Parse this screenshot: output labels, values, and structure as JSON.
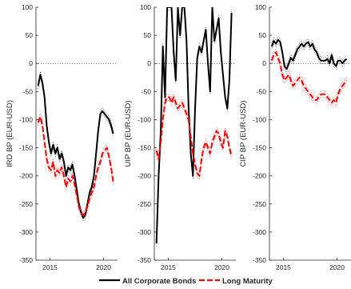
{
  "chart_data": [
    {
      "type": "line",
      "ylabel": "IRD BP (EUR-USD)",
      "ylim": [
        -350,
        100
      ],
      "yticks": [
        100,
        50,
        0,
        -50,
        -100,
        -150,
        -200,
        -250,
        -300,
        -350
      ],
      "xlim": [
        2013.7,
        2021.3
      ],
      "xticks": [
        2015,
        2020
      ],
      "zero_line": true,
      "series": [
        {
          "name": "All Corporate Bonds",
          "color": "#000000",
          "style": "solid",
          "x": [
            2013.9,
            2014.1,
            2014.3,
            2014.5,
            2014.7,
            2014.9,
            2015.1,
            2015.3,
            2015.5,
            2015.7,
            2015.9,
            2016.1,
            2016.3,
            2016.5,
            2016.7,
            2016.9,
            2017.1,
            2017.3,
            2017.5,
            2017.7,
            2017.9,
            2018.1,
            2018.3,
            2018.5,
            2018.7,
            2018.9,
            2019.1,
            2019.3,
            2019.5,
            2019.7,
            2019.9,
            2020.1,
            2020.3,
            2020.5,
            2020.7,
            2020.9
          ],
          "values": [
            -40,
            -20,
            -35,
            -60,
            -110,
            -140,
            -160,
            -145,
            -160,
            -150,
            -170,
            -160,
            -175,
            -200,
            -185,
            -190,
            -180,
            -200,
            -225,
            -250,
            -265,
            -275,
            -270,
            -250,
            -230,
            -220,
            -200,
            -160,
            -120,
            -90,
            -85,
            -90,
            -95,
            -100,
            -110,
            -125
          ]
        },
        {
          "name": "Long Maturity",
          "color": "#ff0000",
          "style": "dashed",
          "x": [
            2013.9,
            2014.1,
            2014.3,
            2014.5,
            2014.7,
            2014.9,
            2015.1,
            2015.3,
            2015.5,
            2015.7,
            2015.9,
            2016.1,
            2016.3,
            2016.5,
            2016.7,
            2016.9,
            2017.1,
            2017.3,
            2017.5,
            2017.7,
            2017.9,
            2018.1,
            2018.3,
            2018.5,
            2018.7,
            2018.9,
            2019.1,
            2019.3,
            2019.5,
            2019.7,
            2019.9,
            2020.1,
            2020.3,
            2020.5,
            2020.7,
            2020.9
          ],
          "values": [
            -105,
            -95,
            -110,
            -140,
            -170,
            -185,
            -190,
            -175,
            -200,
            -190,
            -195,
            -185,
            -200,
            -220,
            -205,
            -210,
            -200,
            -215,
            -235,
            -255,
            -265,
            -270,
            -265,
            -255,
            -240,
            -230,
            -220,
            -200,
            -185,
            -175,
            -160,
            -155,
            -150,
            -165,
            -185,
            -210
          ]
        }
      ]
    },
    {
      "type": "line",
      "ylabel": "UIP BP (EUR-USD)",
      "ylim": [
        -350,
        100
      ],
      "yticks": [
        100,
        50,
        0,
        -50,
        -100,
        -150,
        -200,
        -250,
        -300,
        -350
      ],
      "xlim": [
        2013.7,
        2021.3
      ],
      "xticks": [
        2015,
        2020
      ],
      "zero_line": true,
      "series": [
        {
          "name": "All Corporate Bonds",
          "color": "#000000",
          "style": "solid",
          "x": [
            2013.9,
            2014.1,
            2014.3,
            2014.5,
            2014.7,
            2014.9,
            2015.1,
            2015.3,
            2015.5,
            2015.7,
            2015.9,
            2016.1,
            2016.3,
            2016.5,
            2016.7,
            2016.9,
            2017.1,
            2017.3,
            2017.5,
            2017.7,
            2017.9,
            2018.1,
            2018.3,
            2018.5,
            2018.7,
            2018.9,
            2019.1,
            2019.3,
            2019.5,
            2019.7,
            2019.9,
            2020.1,
            2020.3,
            2020.5,
            2020.7,
            2020.9
          ],
          "values": [
            -320,
            -200,
            -120,
            30,
            -60,
            100,
            100,
            100,
            20,
            -30,
            100,
            50,
            100,
            100,
            40,
            -80,
            -160,
            -200,
            -80,
            10,
            30,
            20,
            40,
            60,
            0,
            -50,
            100,
            40,
            60,
            80,
            20,
            -20,
            -60,
            -80,
            -30,
            90
          ]
        },
        {
          "name": "Long Maturity",
          "color": "#ff0000",
          "style": "dashed",
          "x": [
            2013.9,
            2014.1,
            2014.3,
            2014.5,
            2014.7,
            2014.9,
            2015.1,
            2015.3,
            2015.5,
            2015.7,
            2015.9,
            2016.1,
            2016.3,
            2016.5,
            2016.7,
            2016.9,
            2017.1,
            2017.3,
            2017.5,
            2017.7,
            2017.9,
            2018.1,
            2018.3,
            2018.5,
            2018.7,
            2018.9,
            2019.1,
            2019.3,
            2019.5,
            2019.7,
            2019.9,
            2020.1,
            2020.3,
            2020.5,
            2020.7,
            2020.9
          ],
          "values": [
            -155,
            -170,
            -140,
            -100,
            -70,
            -60,
            -60,
            -70,
            -60,
            -70,
            -80,
            -75,
            -70,
            -80,
            -90,
            -100,
            -130,
            -160,
            -180,
            -195,
            -200,
            -170,
            -150,
            -140,
            -150,
            -160,
            -140,
            -130,
            -120,
            -125,
            -140,
            -150,
            -120,
            -130,
            -150,
            -165
          ]
        }
      ]
    },
    {
      "type": "line",
      "ylabel": "CIP BP (EUR-USD)",
      "ylim": [
        -350,
        100
      ],
      "yticks": [
        100,
        50,
        0,
        -50,
        -100,
        -150,
        -200,
        -250,
        -300,
        -350
      ],
      "xlim": [
        2013.7,
        2021.3
      ],
      "xticks": [
        2015,
        2020
      ],
      "zero_line": true,
      "series": [
        {
          "name": "All Corporate Bonds",
          "color": "#000000",
          "style": "solid",
          "x": [
            2013.9,
            2014.1,
            2014.3,
            2014.5,
            2014.7,
            2014.9,
            2015.1,
            2015.3,
            2015.5,
            2015.7,
            2015.9,
            2016.1,
            2016.3,
            2016.5,
            2016.7,
            2016.9,
            2017.1,
            2017.3,
            2017.5,
            2017.7,
            2017.9,
            2018.1,
            2018.3,
            2018.5,
            2018.7,
            2018.9,
            2019.1,
            2019.3,
            2019.5,
            2019.7,
            2019.9,
            2020.1,
            2020.3,
            2020.5,
            2020.7,
            2020.9
          ],
          "values": [
            30,
            40,
            35,
            42,
            38,
            20,
            -5,
            -10,
            0,
            10,
            5,
            15,
            25,
            30,
            35,
            30,
            35,
            38,
            30,
            35,
            25,
            20,
            10,
            5,
            5,
            5,
            8,
            0,
            15,
            0,
            -5,
            5,
            5,
            0,
            5,
            8
          ]
        },
        {
          "name": "Long Maturity",
          "color": "#ff0000",
          "style": "dashed",
          "x": [
            2013.9,
            2014.1,
            2014.3,
            2014.5,
            2014.7,
            2014.9,
            2015.1,
            2015.3,
            2015.5,
            2015.7,
            2015.9,
            2016.1,
            2016.3,
            2016.5,
            2016.7,
            2016.9,
            2017.1,
            2017.3,
            2017.5,
            2017.7,
            2017.9,
            2018.1,
            2018.3,
            2018.5,
            2018.7,
            2018.9,
            2019.1,
            2019.3,
            2019.5,
            2019.7,
            2019.9,
            2020.1,
            2020.3,
            2020.5,
            2020.7,
            2020.9
          ],
          "values": [
            5,
            15,
            20,
            10,
            0,
            -20,
            -30,
            -25,
            -20,
            -30,
            -40,
            -35,
            -30,
            -25,
            -30,
            -40,
            -45,
            -50,
            -55,
            -60,
            -65,
            -65,
            -60,
            -55,
            -55,
            -55,
            -60,
            -65,
            -70,
            -65,
            -70,
            -55,
            -45,
            -40,
            -35,
            -30
          ]
        }
      ]
    }
  ],
  "legend": {
    "items": [
      {
        "label": "All Corporate Bonds",
        "color": "#000000",
        "style": "solid"
      },
      {
        "label": "Long Maturity",
        "color": "#ff0000",
        "style": "dashed"
      }
    ]
  }
}
